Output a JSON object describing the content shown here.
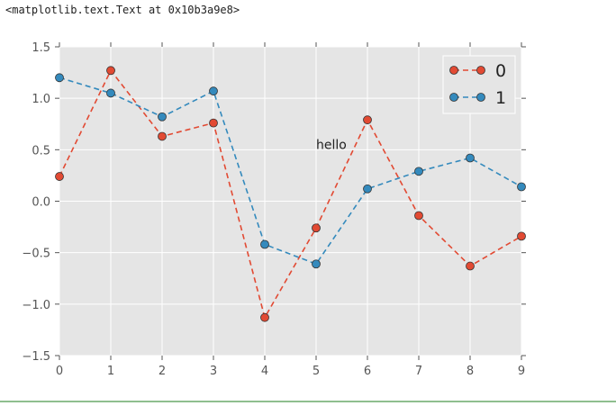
{
  "output": {
    "repr_text": "<matplotlib.text.Text at 0x10b3a9e8>"
  },
  "chart_data": {
    "type": "line",
    "style": "ggplot",
    "background_color": "#E5E5E5",
    "grid": true,
    "x": [
      0,
      1,
      2,
      3,
      4,
      5,
      6,
      7,
      8,
      9
    ],
    "xlim": [
      0,
      9
    ],
    "ylim": [
      -1.5,
      1.5
    ],
    "xticks": [
      0,
      1,
      2,
      3,
      4,
      5,
      6,
      7,
      8,
      9
    ],
    "xtick_labels": [
      "0",
      "1",
      "2",
      "3",
      "4",
      "5",
      "6",
      "7",
      "8",
      "9"
    ],
    "yticks": [
      1.5,
      1.0,
      0.5,
      0.0,
      -0.5,
      -1.0,
      -1.5
    ],
    "ytick_labels": [
      "1.5",
      "1.0",
      "0.5",
      "0.0",
      "−0.5",
      "−1.0",
      "−1.5"
    ],
    "line_style": "dashed",
    "marker": "circle",
    "legend_position": "top-right",
    "series": [
      {
        "name": "0",
        "color": "#E24A33",
        "values": [
          0.24,
          1.27,
          0.63,
          0.76,
          -1.13,
          -0.26,
          0.79,
          -0.14,
          -0.63,
          -0.34
        ]
      },
      {
        "name": "1",
        "color": "#348ABD",
        "values": [
          1.2,
          1.05,
          0.82,
          1.07,
          -0.42,
          -0.61,
          0.12,
          0.29,
          0.42,
          0.14
        ]
      }
    ],
    "annotations": [
      {
        "text": "hello",
        "x": 5,
        "y": 0.5
      }
    ]
  }
}
